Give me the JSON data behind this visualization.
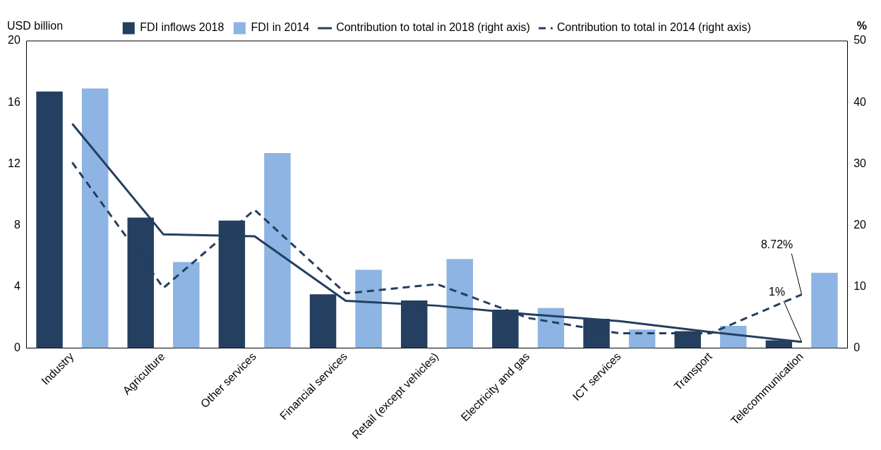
{
  "chart_data": {
    "type": "bar",
    "categories": [
      "Industry",
      "Agriculture",
      "Other services",
      "Financial services",
      "Retail (except vehicles)",
      "Electricity and gas",
      "ICT services",
      "Transport",
      "Telecommunication"
    ],
    "series": [
      {
        "name": "FDI inflows 2018",
        "color": "#243f5f",
        "values": [
          16.7,
          8.5,
          8.3,
          3.5,
          3.1,
          2.5,
          1.9,
          1.1,
          0.5
        ]
      },
      {
        "name": "FDI in 2014",
        "color": "#8db4e2",
        "values": [
          16.9,
          5.6,
          12.7,
          5.1,
          5.8,
          2.6,
          1.2,
          1.45,
          4.9
        ]
      },
      {
        "name": "Contribution to total in 2018 (right axis)",
        "type": "line",
        "axis": "y2",
        "line_style": "solid",
        "color": "#243f5f",
        "values": [
          36.5,
          18.5,
          18.2,
          7.7,
          6.9,
          5.5,
          4.4,
          2.6,
          1
        ],
        "value_labels": [
          null,
          null,
          null,
          null,
          null,
          null,
          null,
          null,
          "1%"
        ]
      },
      {
        "name": "Contribution to total in 2014 (right axis)",
        "type": "line",
        "axis": "y2",
        "line_style": "dashed",
        "color": "#243f5f",
        "values": [
          30.2,
          9.8,
          22.5,
          8.9,
          10.4,
          4.9,
          2.4,
          2.4,
          8.72
        ],
        "value_labels": [
          null,
          null,
          null,
          null,
          null,
          null,
          null,
          null,
          "8.72%"
        ]
      }
    ],
    "ylabel": "USD billion",
    "y2label": "%",
    "ylim": [
      0,
      20
    ],
    "yticks": [
      0,
      4,
      8,
      12,
      16,
      20
    ],
    "y2lim": [
      0,
      50
    ],
    "y2ticks": [
      0,
      10,
      20,
      30,
      40,
      50
    ],
    "legend": "top",
    "grid": false,
    "marker": "none"
  }
}
